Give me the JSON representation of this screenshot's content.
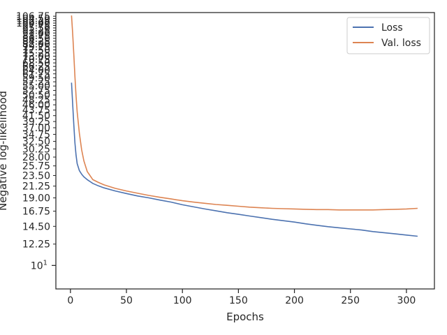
{
  "chart_data": {
    "type": "line",
    "title": "",
    "xlabel": "Epochs",
    "ylabel": "Negative log-likelihood",
    "xlim": [
      -13,
      325
    ],
    "ylim": [
      8.0,
      110.5
    ],
    "yscale": "log",
    "grid": false,
    "legend_position": "top-right",
    "x_ticks": [
      0,
      50,
      100,
      150,
      200,
      250,
      300
    ],
    "x_tick_labels": [
      "0",
      "50",
      "100",
      "150",
      "200",
      "250",
      "300"
    ],
    "y_ticks": [
      12.25,
      14.5,
      16.75,
      19.0,
      21.25,
      23.5,
      25.75,
      28.0,
      30.25,
      32.5,
      34.75,
      37.0,
      39.25,
      41.5,
      43.75,
      46.0,
      48.25,
      50.5,
      52.75,
      55.0,
      57.25,
      59.5,
      61.75,
      64.0,
      66.25,
      68.5,
      70.75,
      73.0,
      75.25,
      77.5,
      79.75,
      82.0,
      84.25,
      86.5,
      88.75,
      91.0,
      93.25,
      95.5,
      97.75,
      100.0,
      102.25,
      104.5,
      106.75
    ],
    "y_tick_labels": [
      "12.25",
      "14.50",
      "16.75",
      "19.00",
      "21.25",
      "23.50",
      "25.75",
      "28.00",
      "30.25",
      "32.50",
      "34.75",
      "37.00",
      "39.25",
      "41.50",
      "43.75",
      "46.00",
      "48.25",
      "50.50",
      "52.75",
      "55.00",
      "57.25",
      "59.50",
      "61.75",
      "64.00",
      "66.25",
      "68.50",
      "70.75",
      "73.00",
      "75.25",
      "77.50",
      "79.75",
      "82.00",
      "84.25",
      "86.50",
      "88.75",
      "91.00",
      "93.25",
      "95.50",
      "97.75",
      "100.00",
      "102.25",
      "104.50",
      "106.75"
    ],
    "y_major_tick": {
      "value": 10,
      "label_base": "10",
      "label_exp": "1"
    },
    "series": [
      {
        "name": "Loss",
        "color": "#4c72b0",
        "x": [
          1,
          2,
          3,
          4,
          5,
          6,
          8,
          10,
          12,
          15,
          20,
          25,
          30,
          40,
          50,
          60,
          70,
          80,
          90,
          100,
          110,
          120,
          130,
          140,
          150,
          160,
          170,
          180,
          190,
          200,
          210,
          220,
          230,
          240,
          250,
          260,
          270,
          280,
          290,
          300,
          310
        ],
        "y": [
          56.8,
          46.0,
          38.0,
          32.0,
          28.5,
          26.3,
          24.6,
          23.8,
          23.2,
          22.6,
          21.8,
          21.3,
          20.9,
          20.3,
          19.8,
          19.35,
          19.0,
          18.6,
          18.25,
          17.8,
          17.45,
          17.1,
          16.8,
          16.5,
          16.25,
          16.0,
          15.75,
          15.5,
          15.3,
          15.1,
          14.85,
          14.65,
          14.45,
          14.3,
          14.15,
          14.0,
          13.8,
          13.65,
          13.5,
          13.35,
          13.2
        ]
      },
      {
        "name": "Val. loss",
        "color": "#dd8452",
        "x": [
          1,
          2,
          3,
          4,
          5,
          6,
          8,
          10,
          12,
          15,
          20,
          25,
          30,
          40,
          50,
          60,
          70,
          80,
          90,
          100,
          110,
          120,
          130,
          140,
          150,
          160,
          170,
          180,
          190,
          200,
          210,
          220,
          230,
          240,
          250,
          260,
          270,
          280,
          290,
          300,
          310
        ],
        "y": [
          107.5,
          90.0,
          74.0,
          60.0,
          50.0,
          43.0,
          35.0,
          30.0,
          27.0,
          24.4,
          22.6,
          22.0,
          21.5,
          20.8,
          20.3,
          19.85,
          19.45,
          19.1,
          18.8,
          18.5,
          18.25,
          18.05,
          17.85,
          17.7,
          17.55,
          17.4,
          17.3,
          17.2,
          17.15,
          17.1,
          17.05,
          17.0,
          17.0,
          16.95,
          16.95,
          16.95,
          16.95,
          17.0,
          17.05,
          17.1,
          17.2
        ]
      }
    ]
  }
}
